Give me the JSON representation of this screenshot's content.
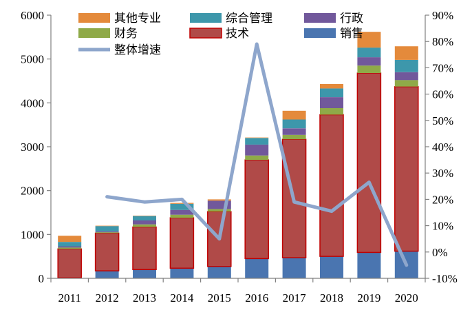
{
  "chart_data": {
    "type": "bar",
    "stacked": true,
    "categories": [
      "2011",
      "2012",
      "2013",
      "2014",
      "2015",
      "2016",
      "2017",
      "2018",
      "2019",
      "2020"
    ],
    "y_left": {
      "min": 0,
      "max": 6000,
      "ticks": [
        0,
        1000,
        2000,
        3000,
        4000,
        5000,
        6000
      ]
    },
    "y_right": {
      "min": -10,
      "max": 90,
      "unit": "%",
      "ticks": [
        -10,
        0,
        10,
        20,
        30,
        40,
        50,
        60,
        70,
        80,
        90
      ],
      "tick_labels": [
        "-10%",
        "0%",
        "10%",
        "20%",
        "30%",
        "40%",
        "50%",
        "60%",
        "70%",
        "80%",
        "90%"
      ]
    },
    "series": [
      {
        "name": "销售",
        "color": "#4a75b0",
        "values": [
          10,
          170,
          200,
          230,
          270,
          450,
          470,
          500,
          590,
          620
        ]
      },
      {
        "name": "技术",
        "color": "#b04a48",
        "values": [
          660,
          860,
          970,
          1150,
          1250,
          2250,
          2700,
          3230,
          4090,
          3750
        ]
      },
      {
        "name": "财务",
        "color": "#8faa48",
        "values": [
          30,
          20,
          60,
          70,
          60,
          100,
          100,
          150,
          170,
          150
        ]
      },
      {
        "name": "行政",
        "color": "#71589b",
        "values": [
          30,
          20,
          90,
          110,
          190,
          250,
          150,
          250,
          190,
          180
        ]
      },
      {
        "name": "综合管理",
        "color": "#3d97ab",
        "values": [
          100,
          120,
          100,
          140,
          0,
          150,
          200,
          200,
          220,
          280
        ]
      },
      {
        "name": "其他专业",
        "color": "#e48a3b",
        "values": [
          140,
          10,
          10,
          20,
          30,
          10,
          200,
          100,
          360,
          310
        ]
      }
    ],
    "line_series": {
      "name": "整体增速",
      "axis": "right",
      "color": "#8ea6cc",
      "values": [
        null,
        21,
        19,
        20,
        5,
        79,
        19,
        15.5,
        26.5,
        -5
      ]
    },
    "legend": {
      "placement": "top",
      "order": [
        "其他专业",
        "综合管理",
        "行政",
        "财务",
        "技术",
        "销售",
        "整体增速"
      ]
    },
    "grid": false
  }
}
